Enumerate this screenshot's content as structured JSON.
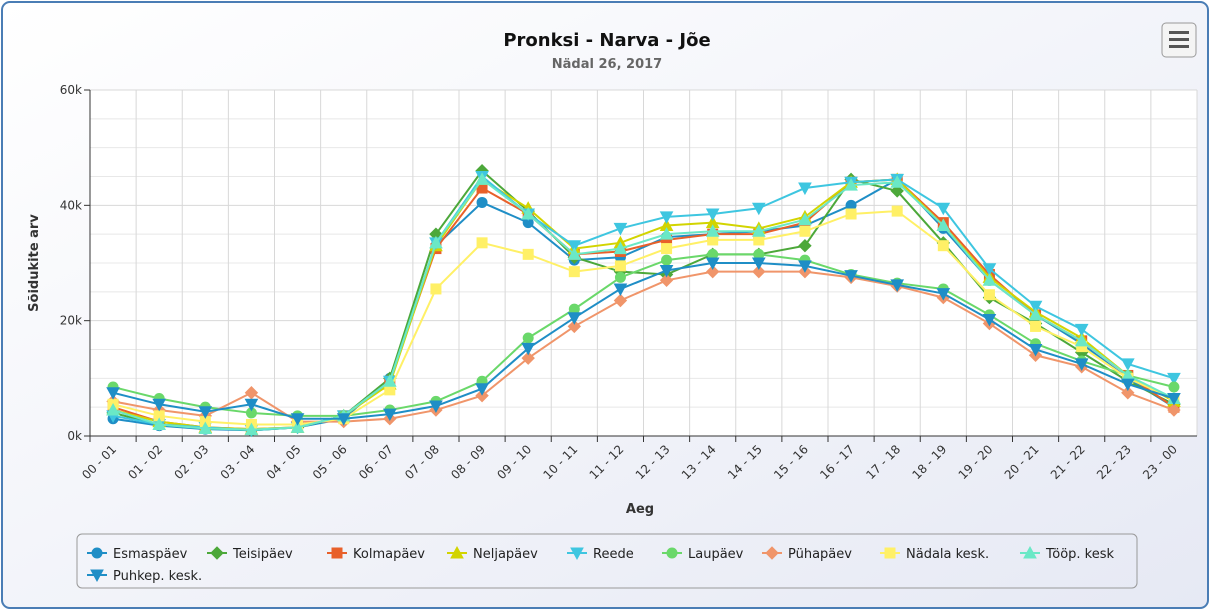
{
  "chart_data": {
    "type": "line",
    "title": "Pronksi - Narva - Jõe",
    "subtitle": "Nädal 26, 2017",
    "x_label": "Aeg",
    "y_label": "Sõidukite arv",
    "categories": [
      "00 - 01",
      "01 - 02",
      "02 - 03",
      "03 - 04",
      "04 - 05",
      "05 - 06",
      "06 - 07",
      "07 - 08",
      "08 - 09",
      "09 - 10",
      "10 - 11",
      "11 - 12",
      "12 - 13",
      "13 - 14",
      "14 - 15",
      "15 - 16",
      "16 - 17",
      "17 - 18",
      "18 - 19",
      "19 - 20",
      "20 - 21",
      "21 - 22",
      "22 - 23",
      "23 - 00"
    ],
    "ylim": [
      0,
      60000
    ],
    "yticks": [
      {
        "value": 0,
        "label": "0k"
      },
      {
        "value": 20000,
        "label": "20k"
      },
      {
        "value": 40000,
        "label": "40k"
      },
      {
        "value": 60000,
        "label": "60k"
      }
    ],
    "yminorticks": [
      5000,
      10000,
      15000,
      25000,
      30000,
      35000,
      45000,
      50000,
      55000
    ],
    "grid": true,
    "legend": "bottom",
    "series": [
      {
        "name": "Esmaspäev",
        "color": "#1f8ec6",
        "marker": "circle",
        "values": [
          3000,
          1800,
          1200,
          1000,
          1500,
          3000,
          10000,
          33000,
          40500,
          37000,
          30500,
          31000,
          34500,
          35000,
          35500,
          36500,
          40000,
          44500,
          36000,
          27000,
          21000,
          16000,
          10000,
          5000
        ]
      },
      {
        "name": "Teisipäev",
        "color": "#4ca83a",
        "marker": "diamond",
        "values": [
          4000,
          2000,
          1500,
          1000,
          1500,
          3500,
          10000,
          35000,
          46000,
          39000,
          31000,
          28500,
          28000,
          31500,
          31500,
          33000,
          44500,
          42500,
          33500,
          24000,
          19500,
          14500,
          9500,
          5500
        ]
      },
      {
        "name": "Kolmapäev",
        "color": "#e8602a",
        "marker": "square",
        "values": [
          5000,
          2500,
          1500,
          1200,
          1500,
          3500,
          9500,
          32500,
          43000,
          38500,
          31500,
          32000,
          34000,
          35000,
          35000,
          37000,
          44000,
          44500,
          37000,
          28000,
          21000,
          16500,
          10500,
          5000
        ]
      },
      {
        "name": "Neljapäev",
        "color": "#d2d400",
        "marker": "triangle",
        "values": [
          4500,
          2500,
          1500,
          1200,
          1500,
          3500,
          9000,
          33000,
          44500,
          39500,
          32500,
          33500,
          36500,
          37000,
          36000,
          38000,
          44000,
          44500,
          36500,
          27500,
          21500,
          17000,
          10500,
          6000
        ]
      },
      {
        "name": "Reede",
        "color": "#3ec6e0",
        "marker": "triangle-down",
        "values": [
          3500,
          2000,
          1500,
          1000,
          1500,
          3500,
          9500,
          33500,
          45000,
          38500,
          33000,
          36000,
          38000,
          38500,
          39500,
          43000,
          44000,
          44500,
          39500,
          29000,
          22500,
          18500,
          12500,
          10000
        ]
      },
      {
        "name": "Laupäev",
        "color": "#6ad86a",
        "marker": "circle",
        "values": [
          8500,
          6500,
          5000,
          4000,
          3500,
          3500,
          4500,
          6000,
          9500,
          17000,
          22000,
          27500,
          30500,
          31500,
          31500,
          30500,
          28000,
          26500,
          25500,
          21000,
          16000,
          13000,
          10500,
          8500
        ]
      },
      {
        "name": "Pühapäev",
        "color": "#f0956a",
        "marker": "diamond",
        "values": [
          6000,
          4500,
          3500,
          7500,
          2500,
          2500,
          3000,
          4500,
          7000,
          13500,
          19000,
          23500,
          27000,
          28500,
          28500,
          28500,
          27500,
          26000,
          24000,
          19500,
          14000,
          12000,
          7500,
          4500
        ]
      },
      {
        "name": "Nädala kesk.",
        "color": "#fff066",
        "marker": "square",
        "values": [
          5500,
          3500,
          2500,
          2000,
          2000,
          3000,
          8000,
          25500,
          33500,
          31500,
          28500,
          29500,
          32500,
          34000,
          34000,
          35500,
          38500,
          39000,
          33000,
          24500,
          19000,
          15500,
          10000,
          6500
        ]
      },
      {
        "name": "Tööp. kesk",
        "color": "#6ae8c6",
        "marker": "triangle",
        "values": [
          4500,
          2000,
          1300,
          1100,
          1500,
          3500,
          9500,
          33500,
          44500,
          38500,
          31500,
          32500,
          35000,
          35500,
          35500,
          37500,
          43500,
          44000,
          36500,
          27000,
          21000,
          16500,
          10500,
          6500
        ]
      },
      {
        "name": "Puhkep. kesk.",
        "color": "#1f8ec6",
        "marker": "triangle-down",
        "values": [
          7500,
          5500,
          4200,
          5500,
          3000,
          3000,
          3800,
          5200,
          8200,
          15200,
          20500,
          25500,
          28700,
          30000,
          30000,
          29500,
          27800,
          26200,
          24700,
          20200,
          15000,
          12500,
          9000,
          6500
        ]
      }
    ]
  }
}
